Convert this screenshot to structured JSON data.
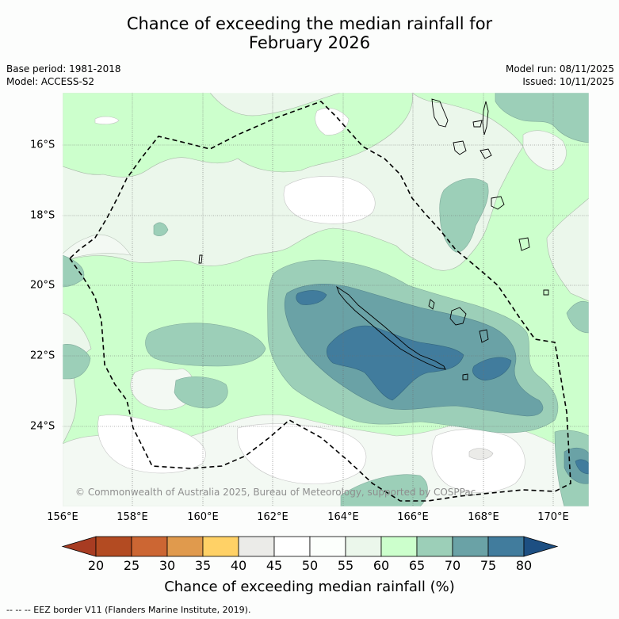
{
  "title": {
    "line1": "Chance of exceeding the median rainfall for",
    "line2": "February 2026"
  },
  "meta": {
    "base_period": "Base period: 1981-2018",
    "model": "Model: ACCESS-S2",
    "model_run": "Model run: 08/11/2025",
    "issued": "Issued: 10/11/2025"
  },
  "map": {
    "copyright": "© Commonwealth of Australia 2025, Bureau of Meteorology, supported by COSPPac",
    "longitude_labels": [
      "156°E",
      "158°E",
      "160°E",
      "162°E",
      "164°E",
      "166°E",
      "168°E",
      "170°E"
    ],
    "latitude_labels": [
      "16°S",
      "18°S",
      "20°S",
      "22°S",
      "24°S"
    ],
    "extent": {
      "lon_min": 156,
      "lon_max": 171,
      "lat_max": -14.5,
      "lat_min": -26.4
    }
  },
  "colorbar": {
    "ticks": [
      "20",
      "25",
      "30",
      "35",
      "40",
      "45",
      "50",
      "55",
      "60",
      "65",
      "70",
      "75",
      "80"
    ],
    "colors": [
      "#a83c22",
      "#b34b22",
      "#cc6633",
      "#e09a4d",
      "#ffd166",
      "#ebebe8",
      "#ffffff",
      "#fcfffc",
      "#ebf7eb",
      "#ccffcc",
      "#9ccfb8",
      "#6aa2a6",
      "#417c9d",
      "#1d4f82"
    ],
    "title": "Chance of exceeding median rainfall (%)"
  },
  "footnote": "-- -- -- EEZ border V11 (Flanders Marine Institute, 2019)."
}
